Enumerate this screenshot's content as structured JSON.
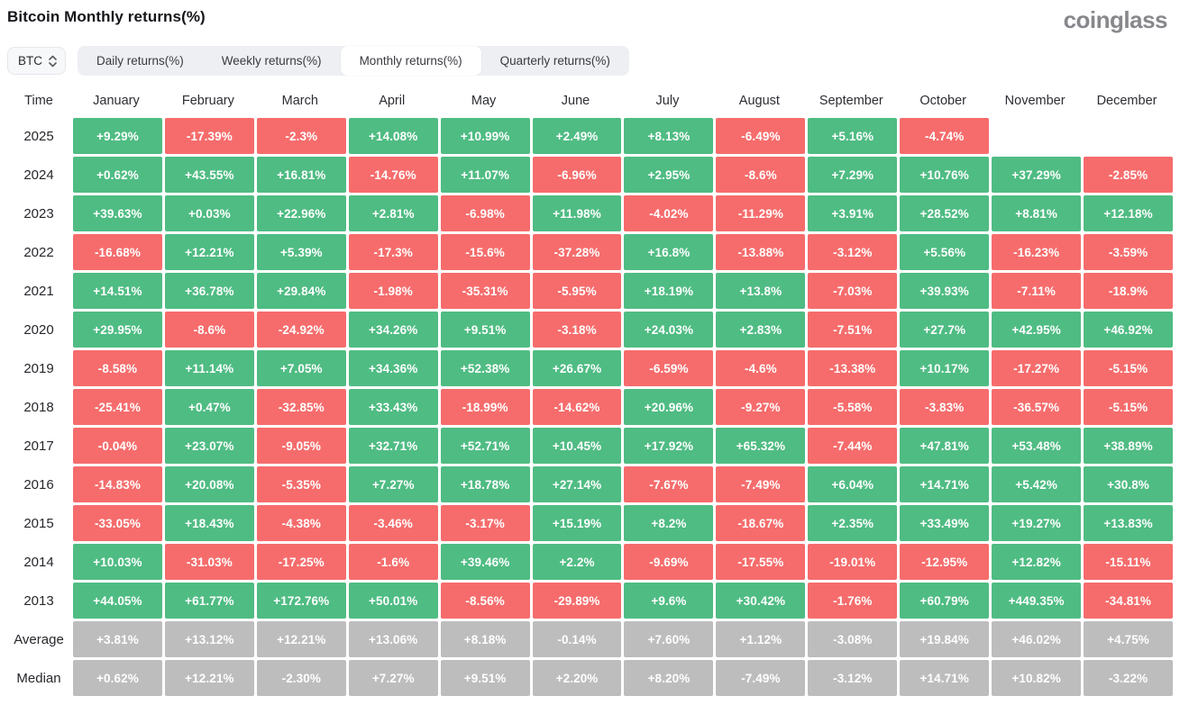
{
  "header": {
    "title": "Bitcoin Monthly returns(%)",
    "logo_text": "coinglass"
  },
  "controls": {
    "symbol_select": {
      "value": "BTC",
      "icon": "updown-chevrons-icon"
    },
    "tabs": [
      {
        "label": "Daily returns(%)",
        "active": false
      },
      {
        "label": "Weekly returns(%)",
        "active": false
      },
      {
        "label": "Monthly returns(%)",
        "active": true
      },
      {
        "label": "Quarterly returns(%)",
        "active": false
      }
    ]
  },
  "colors": {
    "positive": "#4fbc83",
    "negative": "#f66c6c",
    "summary": "#bdbdbd"
  },
  "table": {
    "time_header": "Time",
    "columns": [
      "January",
      "February",
      "March",
      "April",
      "May",
      "June",
      "July",
      "August",
      "September",
      "October",
      "November",
      "December"
    ],
    "rows": [
      {
        "label": "2025",
        "type": "year",
        "values": [
          "+9.29%",
          "-17.39%",
          "-2.3%",
          "+14.08%",
          "+10.99%",
          "+2.49%",
          "+8.13%",
          "-6.49%",
          "+5.16%",
          "-4.74%",
          "",
          ""
        ]
      },
      {
        "label": "2024",
        "type": "year",
        "values": [
          "+0.62%",
          "+43.55%",
          "+16.81%",
          "-14.76%",
          "+11.07%",
          "-6.96%",
          "+2.95%",
          "-8.6%",
          "+7.29%",
          "+10.76%",
          "+37.29%",
          "-2.85%"
        ]
      },
      {
        "label": "2023",
        "type": "year",
        "values": [
          "+39.63%",
          "+0.03%",
          "+22.96%",
          "+2.81%",
          "-6.98%",
          "+11.98%",
          "-4.02%",
          "-11.29%",
          "+3.91%",
          "+28.52%",
          "+8.81%",
          "+12.18%"
        ]
      },
      {
        "label": "2022",
        "type": "year",
        "values": [
          "-16.68%",
          "+12.21%",
          "+5.39%",
          "-17.3%",
          "-15.6%",
          "-37.28%",
          "+16.8%",
          "-13.88%",
          "-3.12%",
          "+5.56%",
          "-16.23%",
          "-3.59%"
        ]
      },
      {
        "label": "2021",
        "type": "year",
        "values": [
          "+14.51%",
          "+36.78%",
          "+29.84%",
          "-1.98%",
          "-35.31%",
          "-5.95%",
          "+18.19%",
          "+13.8%",
          "-7.03%",
          "+39.93%",
          "-7.11%",
          "-18.9%"
        ]
      },
      {
        "label": "2020",
        "type": "year",
        "values": [
          "+29.95%",
          "-8.6%",
          "-24.92%",
          "+34.26%",
          "+9.51%",
          "-3.18%",
          "+24.03%",
          "+2.83%",
          "-7.51%",
          "+27.7%",
          "+42.95%",
          "+46.92%"
        ]
      },
      {
        "label": "2019",
        "type": "year",
        "values": [
          "-8.58%",
          "+11.14%",
          "+7.05%",
          "+34.36%",
          "+52.38%",
          "+26.67%",
          "-6.59%",
          "-4.6%",
          "-13.38%",
          "+10.17%",
          "-17.27%",
          "-5.15%"
        ]
      },
      {
        "label": "2018",
        "type": "year",
        "values": [
          "-25.41%",
          "+0.47%",
          "-32.85%",
          "+33.43%",
          "-18.99%",
          "-14.62%",
          "+20.96%",
          "-9.27%",
          "-5.58%",
          "-3.83%",
          "-36.57%",
          "-5.15%"
        ]
      },
      {
        "label": "2017",
        "type": "year",
        "values": [
          "-0.04%",
          "+23.07%",
          "-9.05%",
          "+32.71%",
          "+52.71%",
          "+10.45%",
          "+17.92%",
          "+65.32%",
          "-7.44%",
          "+47.81%",
          "+53.48%",
          "+38.89%"
        ]
      },
      {
        "label": "2016",
        "type": "year",
        "values": [
          "-14.83%",
          "+20.08%",
          "-5.35%",
          "+7.27%",
          "+18.78%",
          "+27.14%",
          "-7.67%",
          "-7.49%",
          "+6.04%",
          "+14.71%",
          "+5.42%",
          "+30.8%"
        ]
      },
      {
        "label": "2015",
        "type": "year",
        "values": [
          "-33.05%",
          "+18.43%",
          "-4.38%",
          "-3.46%",
          "-3.17%",
          "+15.19%",
          "+8.2%",
          "-18.67%",
          "+2.35%",
          "+33.49%",
          "+19.27%",
          "+13.83%"
        ]
      },
      {
        "label": "2014",
        "type": "year",
        "values": [
          "+10.03%",
          "-31.03%",
          "-17.25%",
          "-1.6%",
          "+39.46%",
          "+2.2%",
          "-9.69%",
          "-17.55%",
          "-19.01%",
          "-12.95%",
          "+12.82%",
          "-15.11%"
        ]
      },
      {
        "label": "2013",
        "type": "year",
        "values": [
          "+44.05%",
          "+61.77%",
          "+172.76%",
          "+50.01%",
          "-8.56%",
          "-29.89%",
          "+9.6%",
          "+30.42%",
          "-1.76%",
          "+60.79%",
          "+449.35%",
          "-34.81%"
        ]
      },
      {
        "label": "Average",
        "type": "summary",
        "values": [
          "+3.81%",
          "+13.12%",
          "+12.21%",
          "+13.06%",
          "+8.18%",
          "-0.14%",
          "+7.60%",
          "+1.12%",
          "-3.08%",
          "+19.84%",
          "+46.02%",
          "+4.75%"
        ]
      },
      {
        "label": "Median",
        "type": "summary",
        "values": [
          "+0.62%",
          "+12.21%",
          "-2.30%",
          "+7.27%",
          "+9.51%",
          "+2.20%",
          "+8.20%",
          "-7.49%",
          "-3.12%",
          "+14.71%",
          "+10.82%",
          "-3.22%"
        ]
      }
    ]
  }
}
